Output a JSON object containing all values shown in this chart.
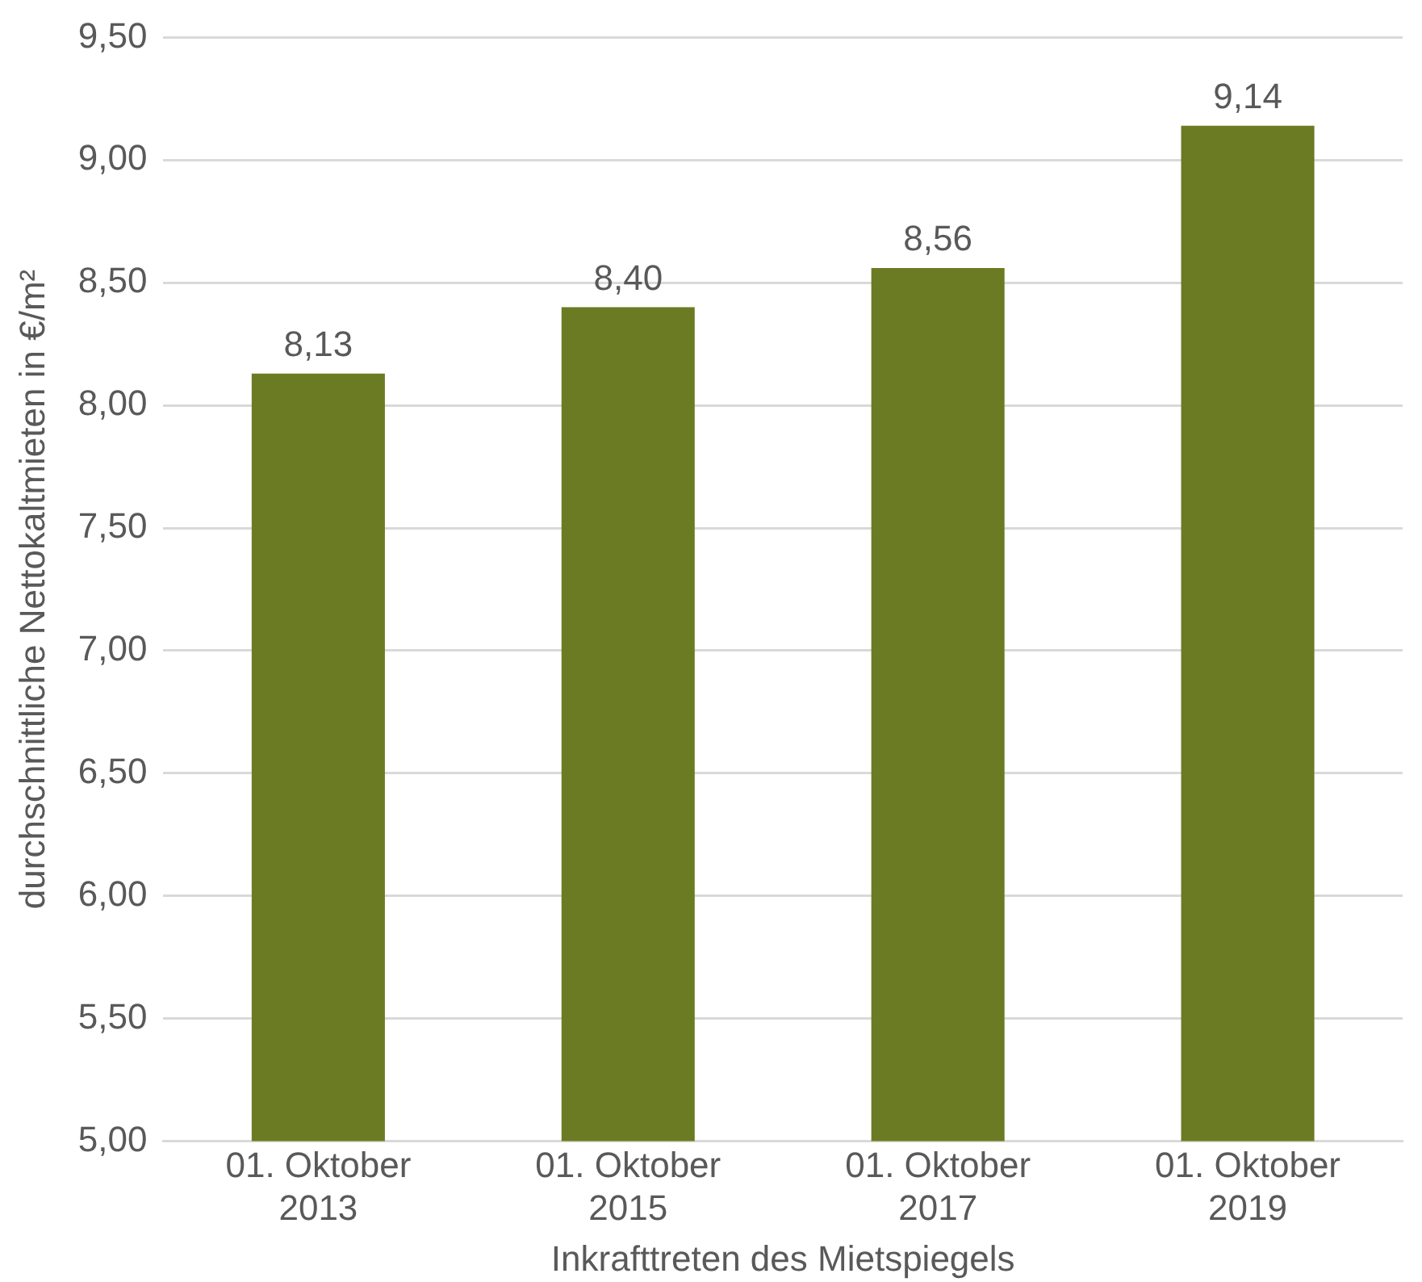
{
  "chart_data": {
    "type": "bar",
    "xlabel": "Inkrafttreten des Mietspiegels",
    "ylabel": "durchschnittliche Nettokaltmieten in €/m²",
    "categories": [
      "01. Oktober 2013",
      "01. Oktober 2015",
      "01. Oktober 2017",
      "01. Oktober 2019"
    ],
    "values": [
      8.13,
      8.4,
      8.56,
      9.14
    ],
    "value_labels": [
      "8,13",
      "8,40",
      "8,56",
      "9,14"
    ],
    "color": "#6b7b23",
    "ylim": [
      5,
      9.5
    ],
    "yticks": [
      {
        "value": 5,
        "label": "5,00"
      },
      {
        "value": 5.5,
        "label": "5,50"
      },
      {
        "value": 6,
        "label": "6,00"
      },
      {
        "value": 6.5,
        "label": "6,50"
      },
      {
        "value": 7,
        "label": "7,00"
      },
      {
        "value": 7.5,
        "label": "7,50"
      },
      {
        "value": 8,
        "label": "8,00"
      },
      {
        "value": 8.5,
        "label": "8,50"
      },
      {
        "value": 9,
        "label": "9,00"
      },
      {
        "value": 9.5,
        "label": "9,50"
      }
    ],
    "grid": "y",
    "legend": false
  }
}
